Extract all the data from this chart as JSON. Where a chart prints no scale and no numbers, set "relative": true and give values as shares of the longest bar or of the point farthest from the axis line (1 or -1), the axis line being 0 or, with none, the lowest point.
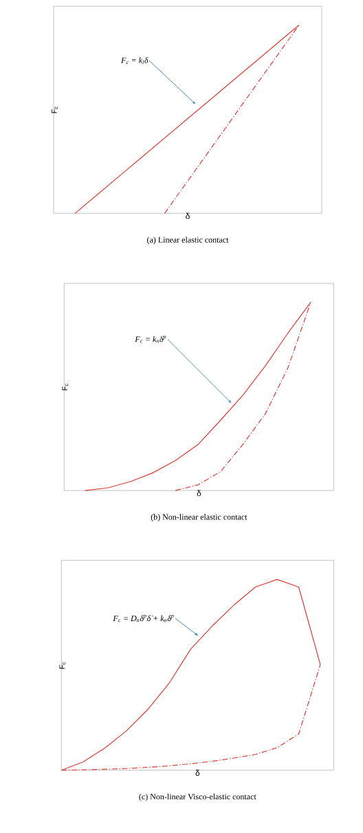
{
  "chart_data": [
    {
      "type": "line",
      "title": "(a)  Linear elastic contact",
      "xlabel": "δ",
      "ylabel": "F$_{c}$",
      "relative": true,
      "marker": "none",
      "categories": [
        null,
        null,
        null,
        null,
        null,
        null,
        null,
        null,
        null,
        null,
        null
      ],
      "series": [
        {
          "color": "#e03c31",
          "line_style": "solid",
          "values": [
            0,
            0.1,
            0.2,
            0.3,
            0.4,
            0.5,
            0.6,
            0.7,
            0.8,
            0.9,
            1
          ]
        },
        {
          "color": "#e03c31",
          "line_style": "dashdot",
          "values": [
            null,
            null,
            null,
            null,
            0,
            0.167,
            0.333,
            0.5,
            0.667,
            0.833,
            1
          ]
        }
      ],
      "annotations": [
        "F$_{c}$ = k$_{l}$δ"
      ]
    },
    {
      "type": "line",
      "title": "(b)  Non-linear elastic contact",
      "xlabel": "δ",
      "ylabel": "F$_{c}$",
      "relative": true,
      "marker": "none",
      "categories": [
        null,
        null,
        null,
        null,
        null,
        null,
        null,
        null,
        null,
        null,
        null
      ],
      "series": [
        {
          "color": "#e03c31",
          "line_style": "solid",
          "values": [
            0,
            0.014,
            0.047,
            0.094,
            0.159,
            0.244,
            0.373,
            0.508,
            0.664,
            0.838,
            1
          ]
        },
        {
          "color": "#e03c31",
          "line_style": "dashdot",
          "values": [
            null,
            null,
            null,
            null,
            0,
            0.03,
            0.1,
            0.246,
            0.41,
            0.655,
            1
          ]
        }
      ],
      "annotations": [
        "F$_{c}$ = k$_{n}$δ$^{p}$"
      ]
    },
    {
      "type": "line",
      "title": "(c)  Non-linear Visco-elastic contact",
      "xlabel": "δ",
      "ylabel": "F$_{c}$",
      "relative": true,
      "marker": "none",
      "categories": [
        null,
        null,
        null,
        null,
        null,
        null,
        null,
        null,
        null,
        null,
        null,
        null,
        null
      ],
      "series": [
        {
          "color": "#e03c31",
          "line_style": "solid",
          "values": [
            0,
            0.043,
            0.115,
            0.205,
            0.318,
            0.457,
            0.636,
            0.757,
            0.866,
            0.961,
            1,
            0.96,
            0.554
          ]
        },
        {
          "color": "#e03c31",
          "line_style": "dashdot",
          "values": [
            0,
            0.002,
            0.005,
            0.009,
            0.015,
            0.023,
            0.034,
            0.047,
            0.064,
            0.083,
            0.118,
            0.19,
            0.554
          ]
        }
      ],
      "annotations": [
        "F$_{c}$ = D$_{n}$δ$^{p}$δ̇ + k$_{n}$δ$^{p}$"
      ]
    }
  ]
}
